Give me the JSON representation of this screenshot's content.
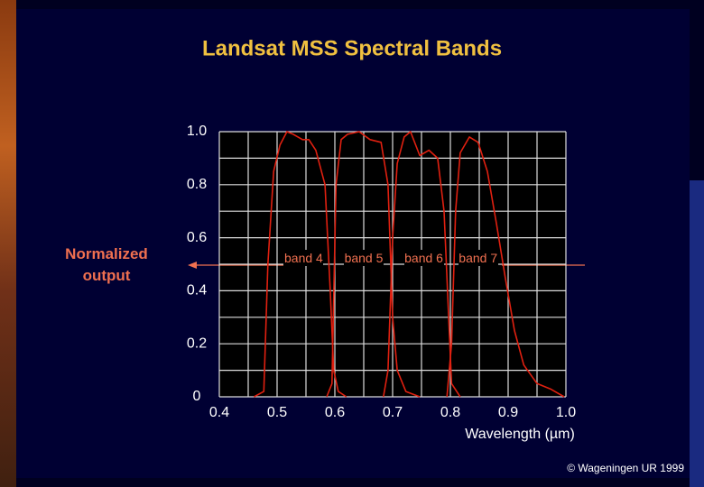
{
  "chart_data": {
    "type": "line",
    "title": "Landsat MSS Spectral Bands",
    "y_label": "Normalized output",
    "x_label": "Wavelength (µm)",
    "copyright": "© Wageningen UR 1999",
    "xlim": [
      0.4,
      1.0
    ],
    "ylim": [
      0,
      1
    ],
    "xticks": [
      0.4,
      0.5,
      0.6,
      0.7,
      0.8,
      0.9,
      {
        "value": 1.0,
        "label": "1.0"
      }
    ],
    "yticks": [
      0,
      0.2,
      0.4,
      0.6,
      0.8,
      {
        "value": 1.0,
        "label": "1.0"
      }
    ],
    "x_gridlines": [
      0.4,
      0.45,
      0.5,
      0.55,
      0.6,
      0.65,
      0.7,
      0.75,
      0.8,
      0.85,
      0.9,
      0.95,
      1.0
    ],
    "y_gridlines": [
      0,
      0.1,
      0.2,
      0.3,
      0.4,
      0.5,
      0.6,
      0.7,
      0.8,
      0.9,
      1.0
    ],
    "grid": true,
    "series": [
      {
        "name": "band 4",
        "color": "#e02010",
        "x": [
          0.46,
          0.477,
          0.484,
          0.494,
          0.505,
          0.517,
          0.528,
          0.544,
          0.555,
          0.567,
          0.583,
          0.592,
          0.598,
          0.606,
          0.62
        ],
        "values": [
          0,
          0.02,
          0.5,
          0.85,
          0.95,
          1.0,
          0.99,
          0.97,
          0.97,
          0.93,
          0.8,
          0.4,
          0.1,
          0.02,
          0
        ]
      },
      {
        "name": "band 5",
        "color": "#e02010",
        "x": [
          0.586,
          0.595,
          0.602,
          0.611,
          0.622,
          0.642,
          0.661,
          0.68,
          0.692,
          0.7,
          0.708,
          0.723,
          0.747
        ],
        "values": [
          0,
          0.05,
          0.8,
          0.97,
          0.99,
          1.0,
          0.97,
          0.96,
          0.8,
          0.3,
          0.1,
          0.02,
          0
        ]
      },
      {
        "name": "band 6",
        "color": "#e02010",
        "x": [
          0.684,
          0.692,
          0.7,
          0.708,
          0.72,
          0.731,
          0.747,
          0.763,
          0.778,
          0.789,
          0.797,
          0.802,
          0.817
        ],
        "values": [
          0,
          0.1,
          0.6,
          0.88,
          0.98,
          1.0,
          0.91,
          0.93,
          0.9,
          0.7,
          0.3,
          0.05,
          0
        ]
      },
      {
        "name": "band 7",
        "color": "#e02010",
        "x": [
          0.794,
          0.802,
          0.809,
          0.817,
          0.833,
          0.848,
          0.864,
          0.88,
          0.895,
          0.911,
          0.927,
          0.95,
          0.973,
          0.997
        ],
        "values": [
          0,
          0.2,
          0.7,
          0.92,
          0.98,
          0.96,
          0.85,
          0.65,
          0.45,
          0.25,
          0.12,
          0.05,
          0.03,
          0
        ]
      }
    ]
  }
}
